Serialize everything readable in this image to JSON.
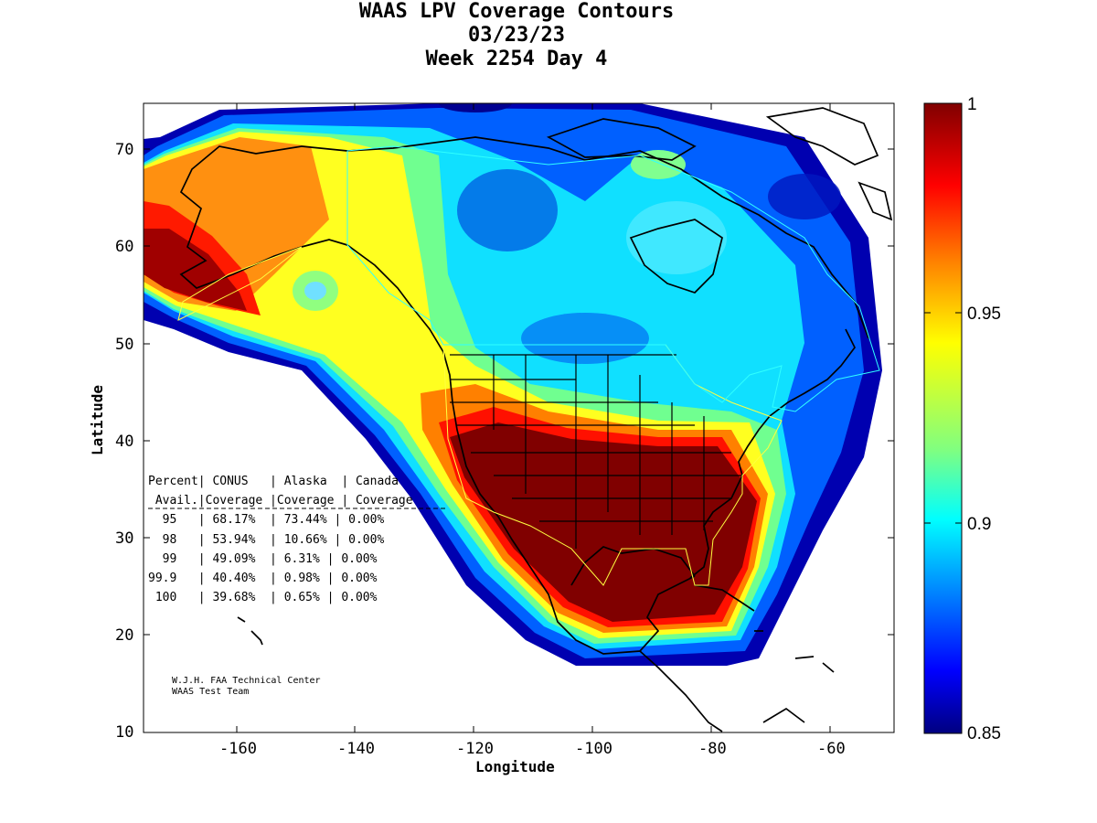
{
  "title": {
    "line1": "WAAS LPV Coverage Contours",
    "line2": "03/23/23",
    "line3": "Week 2254 Day 4"
  },
  "axes": {
    "xlabel": "Longitude",
    "ylabel": "Latitude",
    "xticks": [
      "-160",
      "-140",
      "-120",
      "-100",
      "-80",
      "-60"
    ],
    "yticks": [
      "70",
      "60",
      "50",
      "40",
      "30",
      "20",
      "10"
    ]
  },
  "colorbar": {
    "ticks": [
      "1",
      "0.95",
      "0.9",
      "0.85"
    ],
    "colormap": [
      "#800000",
      "#ff0000",
      "#ff8000",
      "#ffff00",
      "#80ff80",
      "#00ffff",
      "#0080ff",
      "#0000ff",
      "#000080"
    ]
  },
  "table": {
    "header1": "Percent| CONUS   | Alaska  | Canada",
    "header2": " Avail.|Coverage |Coverage | Coverage",
    "rows": [
      "  95   | 68.17%  | 73.44% | 0.00%",
      "  98   | 53.94%  | 10.66% | 0.00%",
      "  99   | 49.09%  | 6.31% | 0.00%",
      "99.9   | 40.40%  | 0.98% | 0.00%",
      " 100   | 39.68%  | 0.65% | 0.00%"
    ]
  },
  "credit": {
    "line1": "W.J.H. FAA Technical Center",
    "line2": "WAAS Test Team"
  }
}
